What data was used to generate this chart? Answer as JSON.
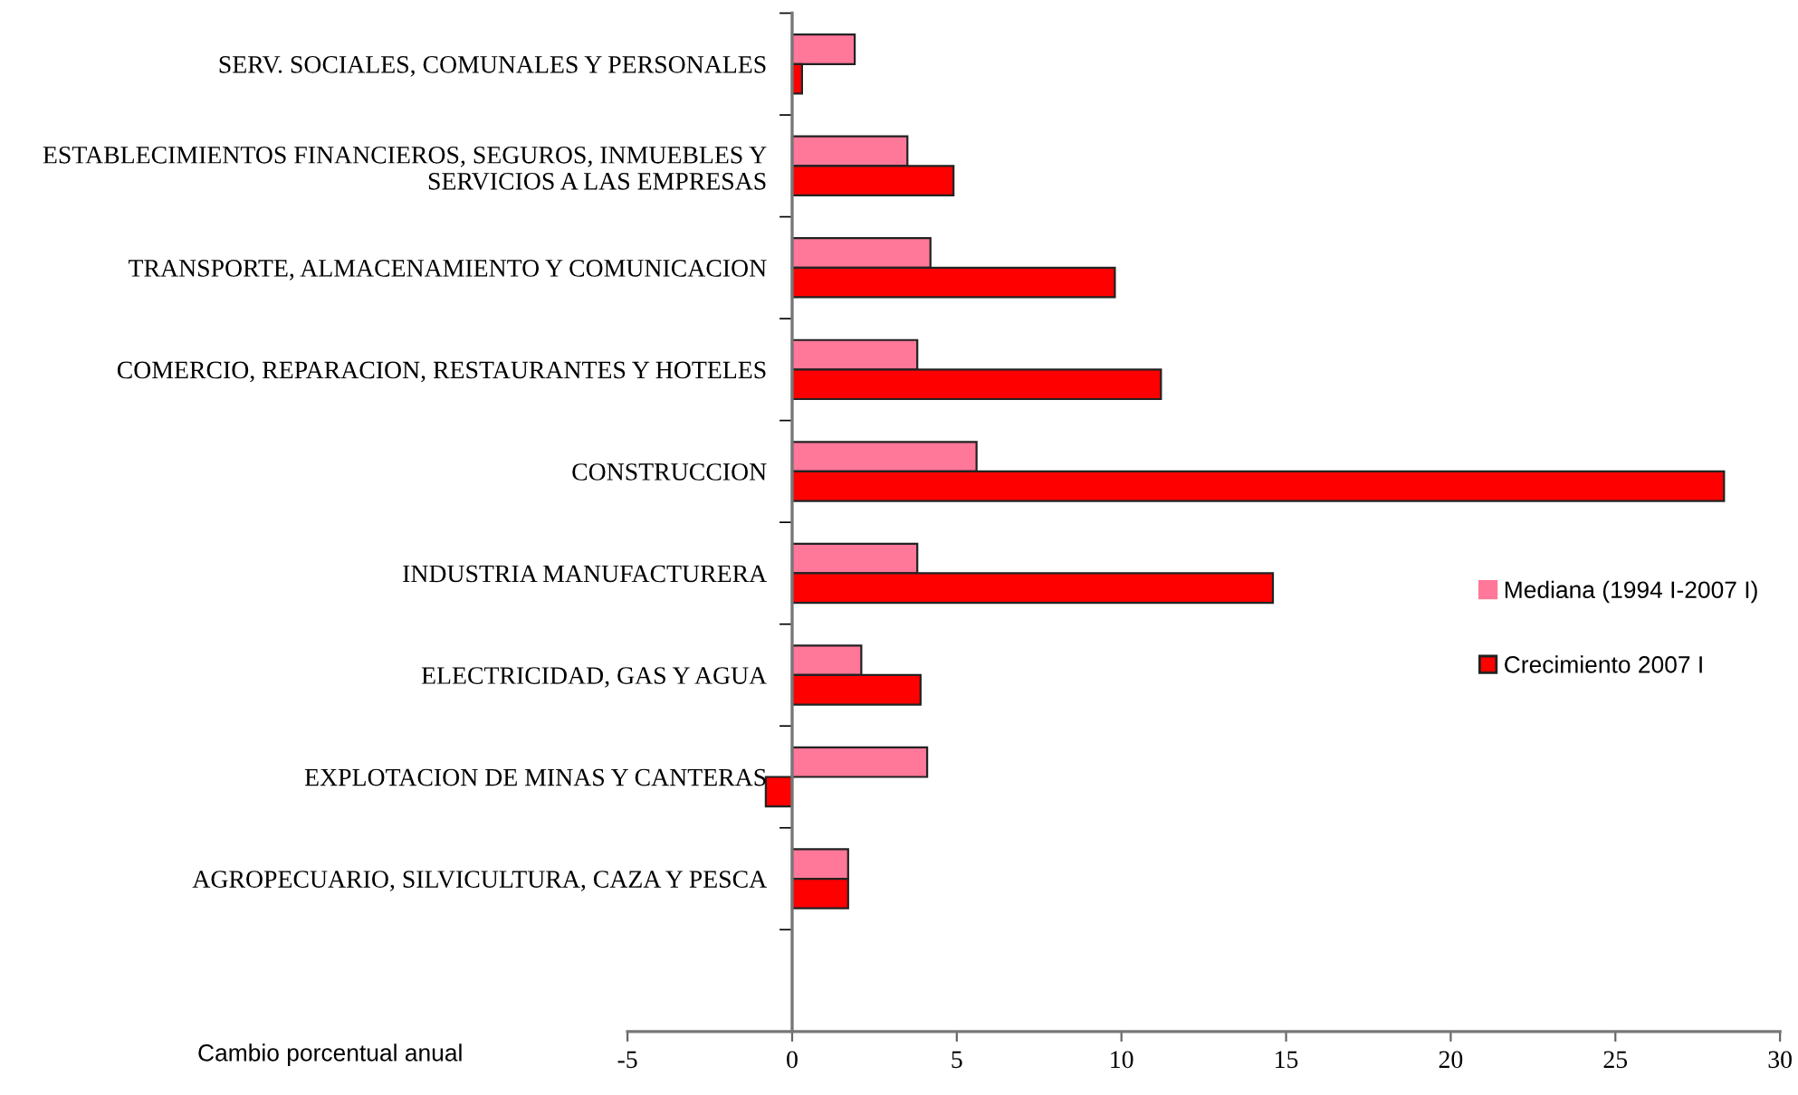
{
  "chart_data": {
    "type": "bar",
    "orientation": "horizontal",
    "categories": [
      "SERV. SOCIALES, COMUNALES Y PERSONALES",
      "ESTABLECIMIENTOS FINANCIEROS, SEGUROS, INMUEBLES Y\nSERVICIOS A LAS EMPRESAS",
      "TRANSPORTE, ALMACENAMIENTO Y COMUNICACION",
      "COMERCIO, REPARACION, RESTAURANTES Y HOTELES",
      "CONSTRUCCION",
      "INDUSTRIA MANUFACTURERA",
      "ELECTRICIDAD, GAS Y AGUA",
      "EXPLOTACION DE MINAS Y CANTERAS",
      "AGROPECUARIO, SILVICULTURA, CAZA Y PESCA",
      null
    ],
    "series": [
      {
        "name": "Mediana (1994 I-2007 I)",
        "color": "#ff7799",
        "values": [
          1.9,
          3.5,
          4.2,
          3.8,
          5.6,
          3.8,
          2.1,
          4.1,
          1.7,
          null
        ]
      },
      {
        "name": "Crecimiento 2007 I",
        "color": "#ff0000",
        "values": [
          0.3,
          4.9,
          9.8,
          11.2,
          28.3,
          14.6,
          3.9,
          -0.8,
          1.7,
          null
        ]
      }
    ],
    "xlabel": "Cambio porcentual anual",
    "xlim": [
      -5,
      30
    ],
    "xticks": [
      -5,
      0,
      5,
      10,
      15,
      20,
      25,
      30
    ],
    "legend": "right",
    "grid": false
  }
}
